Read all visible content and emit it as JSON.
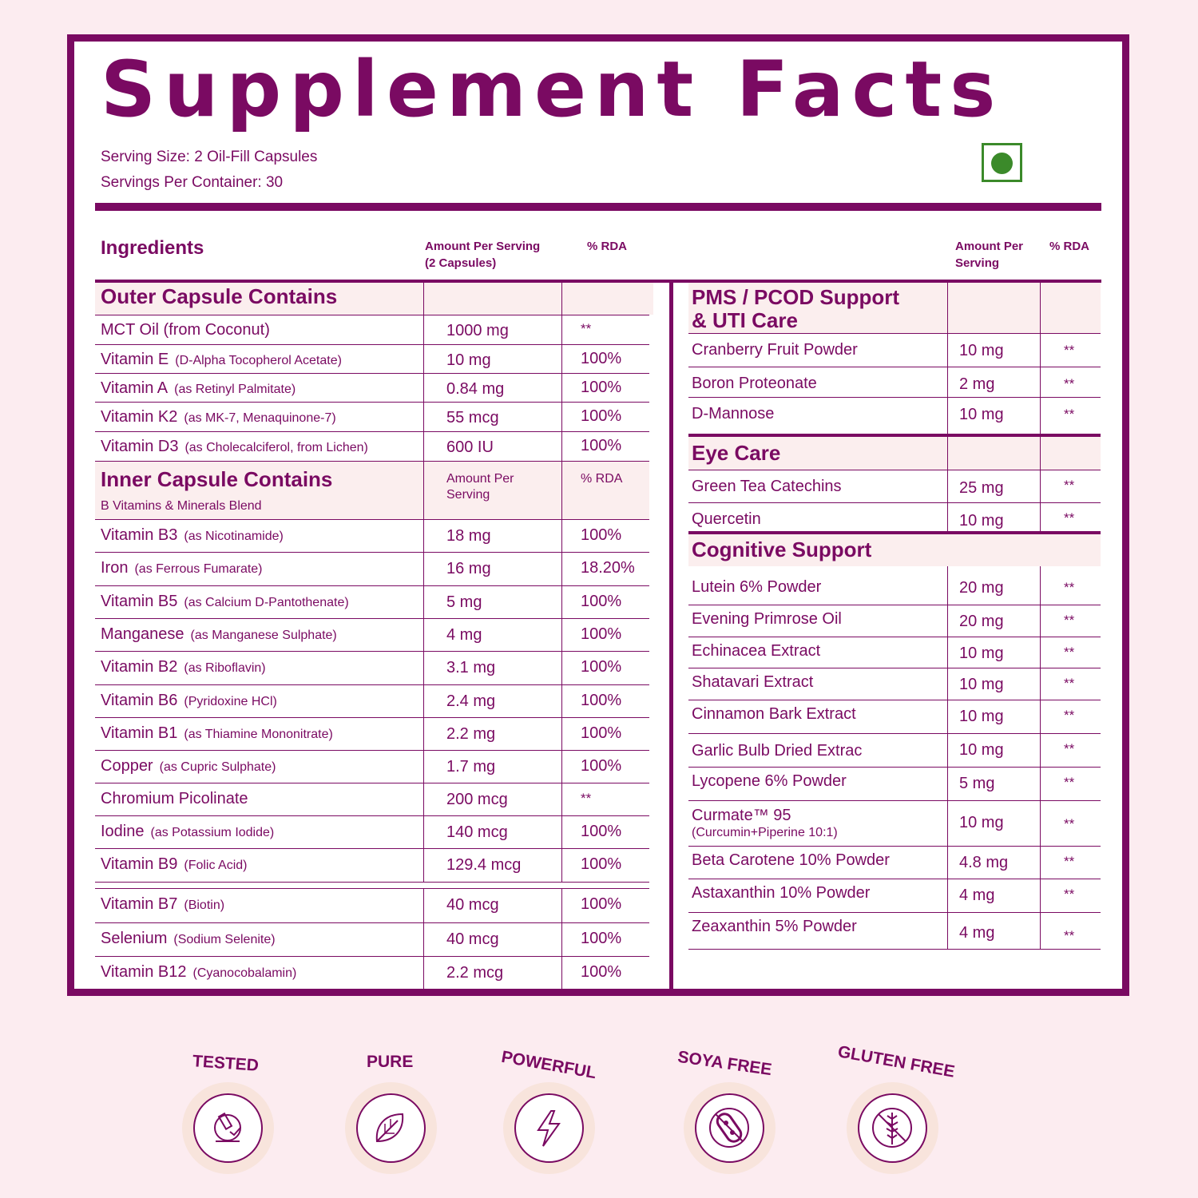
{
  "title": "Supplement Facts",
  "serving_size": "Serving Size: 2 Oil-Fill Capsules",
  "servings_per_container": "Servings Per Container: 30",
  "header": {
    "ingredients": "Ingredients",
    "amount_left_line1": "Amount Per Serving",
    "amount_left_line2": "(2 Capsules)",
    "rda_left": "% RDA",
    "amount_right_line1": "Amount Per",
    "amount_right_line2": "Serving",
    "rda_right": "% RDA"
  },
  "outer": {
    "title": "Outer Capsule Contains",
    "rows": [
      {
        "name": "MCT Oil (from Coconut)",
        "sub": "",
        "amount": "1000 mg",
        "rda": "**"
      },
      {
        "name": "Vitamin E",
        "sub": "(D-Alpha Tocopherol Acetate)",
        "amount": "10 mg",
        "rda": "100%"
      },
      {
        "name": "Vitamin A",
        "sub": "(as Retinyl Palmitate)",
        "amount": "0.84 mg",
        "rda": "100%"
      },
      {
        "name": "Vitamin K2",
        "sub": "(as MK-7, Menaquinone-7)",
        "amount": "55 mcg",
        "rda": "100%"
      },
      {
        "name": "Vitamin D3",
        "sub": "(as Cholecalciferol, from Lichen)",
        "amount": "600 IU",
        "rda": "100%"
      }
    ]
  },
  "inner": {
    "title": "Inner Capsule Contains",
    "subtitle": "B Vitamins & Minerals Blend",
    "amount_line1": "Amount Per",
    "amount_line2": "Serving",
    "rda": "% RDA",
    "rows": [
      {
        "name": "Vitamin B3",
        "sub": "(as Nicotinamide)",
        "amount": "18 mg",
        "rda": "100%"
      },
      {
        "name": "Iron",
        "sub": "(as Ferrous Fumarate)",
        "amount": "16 mg",
        "rda": "18.20%"
      },
      {
        "name": "Vitamin B5",
        "sub": "(as Calcium D-Pantothenate)",
        "amount": "5 mg",
        "rda": "100%"
      },
      {
        "name": "Manganese",
        "sub": "(as Manganese Sulphate)",
        "amount": "4 mg",
        "rda": "100%"
      },
      {
        "name": "Vitamin B2",
        "sub": "(as Riboflavin)",
        "amount": "3.1 mg",
        "rda": "100%"
      },
      {
        "name": "Vitamin B6",
        "sub": "(Pyridoxine HCl)",
        "amount": "2.4 mg",
        "rda": "100%"
      },
      {
        "name": "Vitamin B1",
        "sub": "(as Thiamine Mononitrate)",
        "amount": "2.2 mg",
        "rda": "100%"
      },
      {
        "name": "Copper",
        "sub": "(as Cupric Sulphate)",
        "amount": "1.7 mg",
        "rda": "100%"
      },
      {
        "name": "Chromium Picolinate",
        "sub": "",
        "amount": "200 mcg",
        "rda": "**"
      },
      {
        "name": "Iodine",
        "sub": "(as Potassium Iodide)",
        "amount": "140 mcg",
        "rda": "100%"
      },
      {
        "name": "Vitamin B9",
        "sub": "(Folic Acid)",
        "amount": "129.4 mcg",
        "rda": "100%"
      },
      {
        "name": "Vitamin B7",
        "sub": "(Biotin)",
        "amount": "40 mcg",
        "rda": "100%"
      },
      {
        "name": "Selenium",
        "sub": "(Sodium Selenite)",
        "amount": "40 mcg",
        "rda": "100%"
      },
      {
        "name": "Vitamin B12",
        "sub": "(Cyanocobalamin)",
        "amount": "2.2 mcg",
        "rda": "100%"
      }
    ]
  },
  "pms": {
    "title_line1": "PMS / PCOD Support",
    "title_line2": "& UTI Care",
    "rows": [
      {
        "name": "Cranberry Fruit Powder",
        "amount": "10 mg",
        "rda": "**"
      },
      {
        "name": "Boron Proteonate",
        "amount": "2 mg",
        "rda": "**"
      },
      {
        "name": "D-Mannose",
        "amount": "10 mg",
        "rda": "**"
      }
    ]
  },
  "eye": {
    "title": "Eye Care",
    "rows": [
      {
        "name": "Green Tea Catechins",
        "amount": "25 mg",
        "rda": "**"
      },
      {
        "name": "Quercetin",
        "amount": "10 mg",
        "rda": "**"
      }
    ]
  },
  "cognitive": {
    "title": "Cognitive Support",
    "rows": [
      {
        "name": "Lutein 6% Powder",
        "sub": "",
        "amount": "20 mg",
        "rda": "**"
      },
      {
        "name": "Evening Primrose Oil",
        "sub": "",
        "amount": "20 mg",
        "rda": "**"
      },
      {
        "name": "Echinacea Extract",
        "sub": "",
        "amount": "10 mg",
        "rda": "**"
      },
      {
        "name": "Shatavari Extract",
        "sub": "",
        "amount": "10 mg",
        "rda": "**"
      },
      {
        "name": "Cinnamon Bark Extract",
        "sub": "",
        "amount": "10 mg",
        "rda": "**"
      },
      {
        "name": "Garlic Bulb Dried Extrac",
        "sub": "",
        "amount": "10 mg",
        "rda": "**"
      },
      {
        "name": "Lycopene 6% Powder",
        "sub": "",
        "amount": "5 mg",
        "rda": "**"
      },
      {
        "name": "Curmate™ 95",
        "sub": "(Curcumin+Piperine 10:1)",
        "amount": "10 mg",
        "rda": "**"
      },
      {
        "name": "Beta Carotene 10% Powder",
        "sub": "",
        "amount": "4.8 mg",
        "rda": "**"
      },
      {
        "name": "Astaxanthin 10% Powder",
        "sub": "",
        "amount": "4 mg",
        "rda": "**"
      },
      {
        "name": "Zeaxanthin 5% Powder",
        "sub": "",
        "amount": "4 mg",
        "rda": "**"
      }
    ]
  },
  "badges": [
    {
      "label": "TESTED",
      "icon": "microscope-icon"
    },
    {
      "label": "PURE",
      "icon": "leaf-icon"
    },
    {
      "label": "POWERFUL",
      "icon": "lightning-icon"
    },
    {
      "label": "SOYA  FREE",
      "icon": "no-soy-icon"
    },
    {
      "label": "GLUTEN FREE",
      "icon": "no-wheat-icon"
    }
  ],
  "colors": {
    "accent": "#7a0a62",
    "veg_mark": "#3b8a2a",
    "section_fill": "#fbeeee",
    "background": "#fcecf0"
  }
}
